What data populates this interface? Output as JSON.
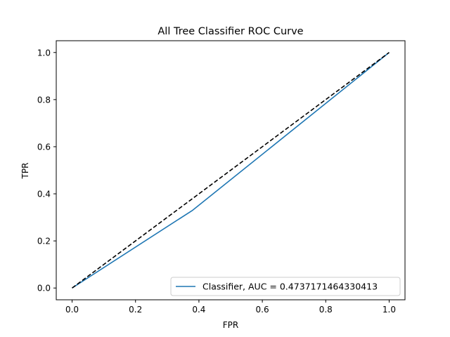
{
  "chart_data": {
    "type": "line",
    "title": "All Tree Classifier ROC Curve",
    "xlabel": "FPR",
    "ylabel": "TPR",
    "xlim": [
      -0.05,
      1.05
    ],
    "ylim": [
      -0.05,
      1.05
    ],
    "xticks": [
      "0.0",
      "0.2",
      "0.4",
      "0.6",
      "0.8",
      "1.0"
    ],
    "yticks": [
      "0.0",
      "0.2",
      "0.4",
      "0.6",
      "0.8",
      "1.0"
    ],
    "grid": false,
    "legend_position": "lower-right",
    "series": [
      {
        "name": "Classifier, AUC = 0.4737171464330413",
        "color": "#1f77b4",
        "style": "solid",
        "x": [
          0.0,
          0.38,
          1.0
        ],
        "y": [
          0.0,
          0.33,
          1.0
        ]
      },
      {
        "color": "#000000",
        "style": "dashed",
        "x": [
          0.0,
          1.0
        ],
        "y": [
          0.0,
          1.0
        ]
      }
    ]
  }
}
